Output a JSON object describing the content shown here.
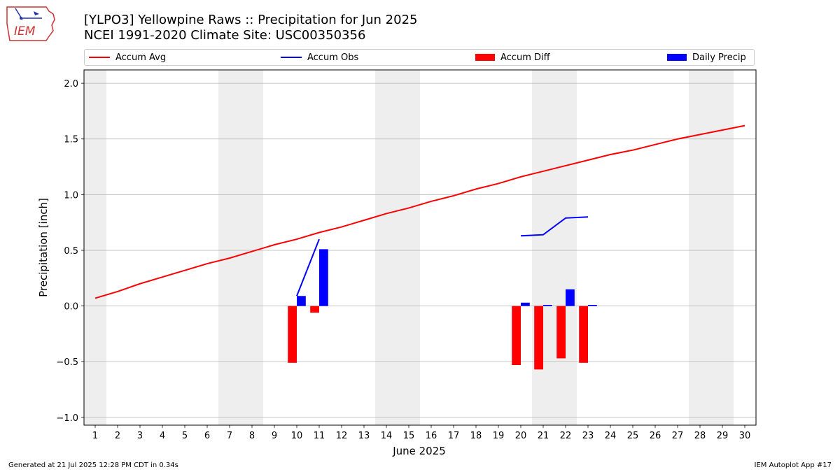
{
  "header": {
    "title": "[YLPO3] Yellowpine Raws :: Precipitation for Jun 2025",
    "subtitle": "NCEI 1991-2020 Climate Site: USC00350356",
    "logo_text": "IEM"
  },
  "footer": {
    "generated": "Generated at 21 Jul 2025 12:28 PM CDT in 0.34s",
    "app": "IEM Autoplot App #17"
  },
  "legend": {
    "items": [
      {
        "label": "Accum Avg",
        "kind": "line",
        "color": "#ff0000"
      },
      {
        "label": "Accum Obs",
        "kind": "line",
        "color": "#0000ff"
      },
      {
        "label": "Accum Diff",
        "kind": "box",
        "color": "#ff0000"
      },
      {
        "label": "Daily Precip",
        "kind": "box",
        "color": "#0000ff"
      }
    ]
  },
  "chart_data": {
    "type": "bar",
    "title": "[YLPO3] Yellowpine Raws :: Precipitation for Jun 2025",
    "xlabel": "June 2025",
    "ylabel": "Precipitation [inch]",
    "xlim": [
      0.5,
      30.5
    ],
    "ylim": [
      -1.07,
      2.12
    ],
    "x_ticks": [
      1,
      2,
      3,
      4,
      5,
      6,
      7,
      8,
      9,
      10,
      11,
      12,
      13,
      14,
      15,
      16,
      17,
      18,
      19,
      20,
      21,
      22,
      23,
      24,
      25,
      26,
      27,
      28,
      29,
      30
    ],
    "y_ticks": [
      -1.0,
      -0.5,
      0.0,
      0.5,
      1.0,
      1.5,
      2.0
    ],
    "y_tick_labels": [
      "−1.0",
      "−0.5",
      "0.0",
      "0.5",
      "1.0",
      "1.5",
      "2.0"
    ],
    "grid": "horizontal",
    "weekend_shading": [
      [
        0.5,
        1.5
      ],
      [
        6.5,
        8.5
      ],
      [
        13.5,
        15.5
      ],
      [
        20.5,
        22.5
      ],
      [
        27.5,
        29.5
      ]
    ],
    "series": [
      {
        "name": "Accum Avg",
        "kind": "line",
        "color": "#ff0000",
        "x": [
          1,
          2,
          3,
          4,
          5,
          6,
          7,
          8,
          9,
          10,
          11,
          12,
          13,
          14,
          15,
          16,
          17,
          18,
          19,
          20,
          21,
          22,
          23,
          24,
          25,
          26,
          27,
          28,
          29,
          30
        ],
        "values": [
          0.07,
          0.13,
          0.2,
          0.26,
          0.32,
          0.38,
          0.43,
          0.49,
          0.55,
          0.6,
          0.66,
          0.71,
          0.77,
          0.83,
          0.88,
          0.94,
          0.99,
          1.05,
          1.1,
          1.16,
          1.21,
          1.26,
          1.31,
          1.36,
          1.4,
          1.45,
          1.5,
          1.54,
          1.58,
          1.62
        ]
      },
      {
        "name": "Accum Obs",
        "kind": "line",
        "color": "#0000ff",
        "segments": [
          {
            "x": [
              10,
              11
            ],
            "values": [
              0.09,
              0.6
            ]
          },
          {
            "x": [
              20,
              21,
              22,
              23
            ],
            "values": [
              0.63,
              0.64,
              0.79,
              0.8
            ]
          }
        ]
      },
      {
        "name": "Accum Diff",
        "kind": "bar",
        "color": "#ff0000",
        "x": [
          10,
          11,
          20,
          21,
          22,
          23
        ],
        "values": [
          -0.51,
          -0.06,
          -0.53,
          -0.57,
          -0.47,
          -0.51
        ]
      },
      {
        "name": "Daily Precip",
        "kind": "bar",
        "color": "#0000ff",
        "x": [
          10,
          11,
          20,
          21,
          22,
          23
        ],
        "values": [
          0.09,
          0.51,
          0.03,
          0.01,
          0.15,
          0.01
        ]
      }
    ]
  }
}
